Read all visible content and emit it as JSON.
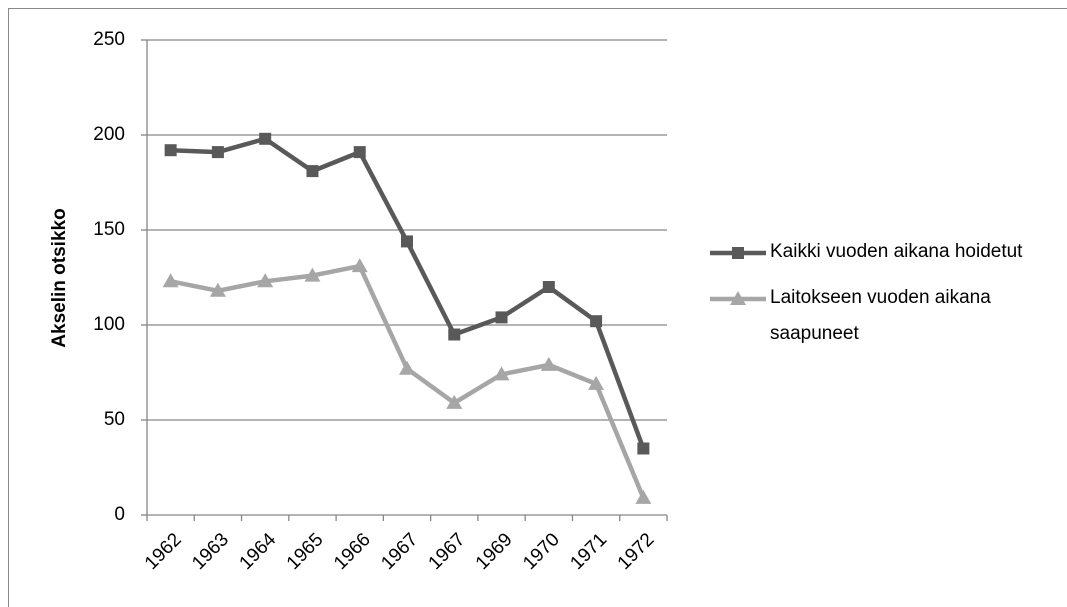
{
  "chart_data": {
    "type": "line",
    "y_axis_label": "Akselin otsikko",
    "categories": [
      "1962",
      "1963",
      "1964",
      "1965",
      "1966",
      "1967",
      "1967",
      "1969",
      "1970",
      "1971",
      "1972"
    ],
    "series": [
      {
        "name": "Kaikki vuoden aikana hoidetut",
        "color": "#595959",
        "marker": "square",
        "values": [
          192,
          191,
          198,
          181,
          191,
          144,
          95,
          104,
          120,
          102,
          35
        ]
      },
      {
        "name": "Laitokseen vuoden aikana saapuneet",
        "color": "#a6a6a6",
        "marker": "triangle",
        "values": [
          123,
          118,
          123,
          126,
          131,
          77,
          59,
          74,
          79,
          69,
          9
        ]
      }
    ],
    "ylim": [
      0,
      250
    ],
    "yticks": [
      0,
      50,
      100,
      150,
      200,
      250
    ],
    "grid": true,
    "legend": "right"
  }
}
